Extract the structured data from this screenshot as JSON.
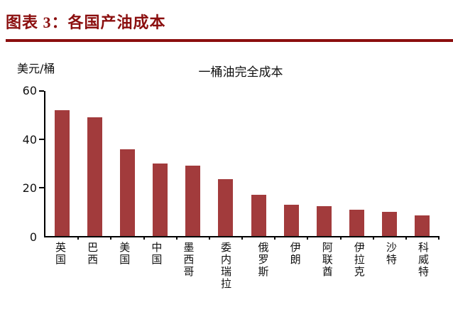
{
  "header": {
    "title": "图表 3：各国产油成本"
  },
  "colors": {
    "accent": "#8b0f0f",
    "bar": "#a23b3c",
    "axis": "#000000"
  },
  "chart_data": {
    "type": "bar",
    "title": "一桶油完全成本",
    "ylabel": "美元/桶",
    "xlabel": "",
    "categories": [
      "英国",
      "巴西",
      "美国",
      "中国",
      "墨西哥",
      "委内瑞拉",
      "俄罗斯",
      "伊朗",
      "阿联酋",
      "伊拉克",
      "沙特",
      "科威特"
    ],
    "values": [
      52,
      49,
      36,
      30,
      29,
      23.5,
      17,
      13,
      12.5,
      11,
      10,
      8.5
    ],
    "ylim": [
      0,
      60
    ],
    "yticks": [
      0,
      20,
      40,
      60
    ],
    "grid": false,
    "legend": "none",
    "bar_color": "#a23b3c"
  }
}
